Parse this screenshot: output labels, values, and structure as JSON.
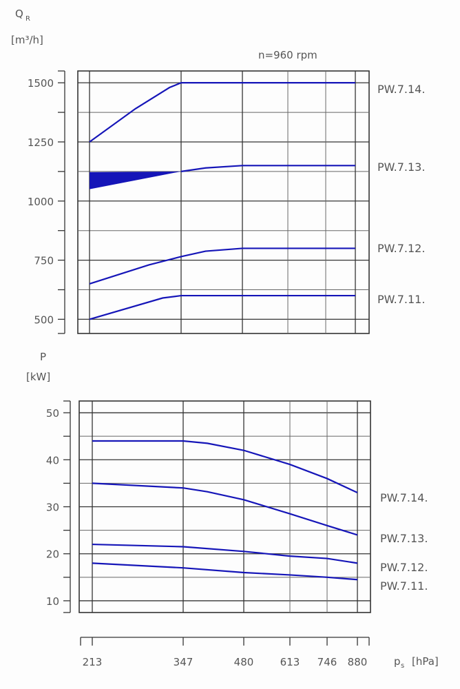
{
  "chart_data": [
    {
      "type": "line",
      "title": "n=960  rpm",
      "ylabel": "Q",
      "ylabel_sub": "R",
      "yunit": "[m³/h]",
      "ylim": [
        440,
        1550
      ],
      "yticks": [
        500,
        750,
        1000,
        1250,
        1500
      ],
      "ytick_labels": [
        "500",
        "750",
        "1000",
        "1250",
        "1500"
      ],
      "minor_yticks": [
        625,
        875,
        1125,
        1375
      ],
      "x_ticks": [
        213,
        347,
        480,
        613,
        746,
        880
      ],
      "grid": true,
      "series": [
        {
          "name": "PW.7.14.",
          "points": [
            [
              213,
              1250
            ],
            [
              280,
              1390
            ],
            [
              330,
              1480
            ],
            [
              347,
              1500
            ],
            [
              880,
              1500
            ]
          ]
        },
        {
          "name": "PW.7.13.",
          "points": [
            [
              347,
              1125
            ],
            [
              400,
              1140
            ],
            [
              480,
              1150
            ],
            [
              880,
              1150
            ]
          ],
          "band": {
            "lower": [
              [
                213,
                1050
              ],
              [
                347,
                1125
              ]
            ],
            "upper": [
              [
                213,
                1122
              ],
              [
                347,
                1125
              ]
            ]
          }
        },
        {
          "name": "PW.7.12.",
          "points": [
            [
              213,
              650
            ],
            [
              300,
              730
            ],
            [
              347,
              765
            ],
            [
              400,
              788
            ],
            [
              480,
              800
            ],
            [
              880,
              800
            ]
          ]
        },
        {
          "name": "PW.7.11.",
          "points": [
            [
              213,
              500
            ],
            [
              320,
              590
            ],
            [
              347,
              600
            ],
            [
              880,
              600
            ]
          ]
        }
      ]
    },
    {
      "type": "line",
      "ylabel": "P",
      "yunit": "[kW]",
      "ylim": [
        7.5,
        52.5
      ],
      "yticks": [
        10,
        20,
        30,
        40,
        50
      ],
      "ytick_labels": [
        "10",
        "20",
        "30",
        "40",
        "50"
      ],
      "minor_yticks": [
        15,
        25,
        35,
        45
      ],
      "xlabel": "p",
      "xlabel_sub": "s",
      "xunit": "[hPa]",
      "x_ticks": [
        213,
        347,
        480,
        613,
        746,
        880
      ],
      "x_tick_labels": [
        "213",
        "347",
        "480",
        "613",
        "746",
        "880"
      ],
      "grid": true,
      "series": [
        {
          "name": "PW.7.14.",
          "points": [
            [
              213,
              44
            ],
            [
              347,
              44
            ],
            [
              400,
              43.5
            ],
            [
              480,
              42
            ],
            [
              613,
              39
            ],
            [
              746,
              36
            ],
            [
              880,
              33
            ]
          ]
        },
        {
          "name": "PW.7.13.",
          "points": [
            [
              213,
              35
            ],
            [
              347,
              34
            ],
            [
              400,
              33.2
            ],
            [
              480,
              31.5
            ],
            [
              613,
              28.5
            ],
            [
              746,
              26
            ],
            [
              880,
              24
            ]
          ]
        },
        {
          "name": "PW.7.12.",
          "points": [
            [
              213,
              22
            ],
            [
              347,
              21.5
            ],
            [
              480,
              20.5
            ],
            [
              613,
              19.5
            ],
            [
              746,
              19
            ],
            [
              880,
              18
            ]
          ]
        },
        {
          "name": "PW.7.11.",
          "points": [
            [
              213,
              18
            ],
            [
              347,
              17
            ],
            [
              480,
              16
            ],
            [
              613,
              15.5
            ],
            [
              746,
              15
            ],
            [
              880,
              14.5
            ]
          ]
        }
      ]
    }
  ],
  "colors": {
    "series": "#1515b8",
    "text": "#555555"
  }
}
